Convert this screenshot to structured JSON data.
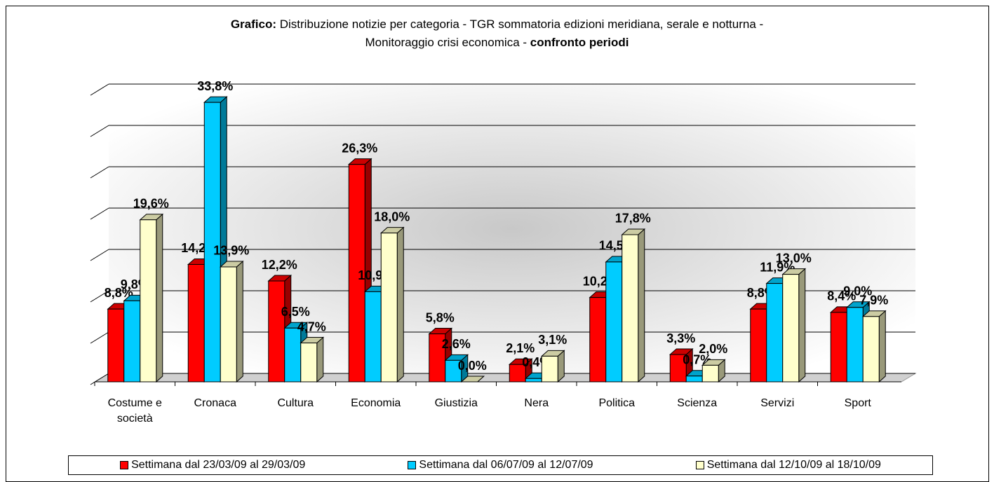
{
  "chart_data": {
    "type": "bar3d",
    "title": [
      "Grafico:",
      "Distribuzione notizie per categoria - TGR sommatoria edizioni meridiana, serale e notturna -",
      "Monitoraggio crisi economica -",
      "confronto periodi"
    ],
    "categories": [
      "Costume e società",
      "Cronaca",
      "Cultura",
      "Economia",
      "Giustizia",
      "Nera",
      "Politica",
      "Scienza",
      "Servizi",
      "Sport"
    ],
    "series": [
      {
        "name": "Settimana dal 23/03/09 al 29/03/09",
        "color": "#ff0000",
        "values": [
          8.8,
          14.2,
          12.2,
          26.3,
          5.8,
          2.1,
          10.2,
          3.3,
          8.8,
          8.4
        ],
        "value_labels": [
          "8,8%",
          "14,2%",
          "12,2%",
          "26,3%",
          "5,8%",
          "2,1%",
          "10,2%",
          "3,3%",
          "8,8%",
          "8,4%"
        ]
      },
      {
        "name": "Settimana dal 06/07/09 al 12/07/09",
        "color": "#00ccff",
        "values": [
          9.8,
          33.8,
          6.5,
          10.9,
          2.6,
          0.4,
          14.5,
          0.7,
          11.9,
          9.0
        ],
        "value_labels": [
          "9,8%",
          "33,8%",
          "6,5%",
          "10,9%",
          "2,6%",
          "0,4%",
          "14,5%",
          "0,7%",
          "11,9%",
          "9,0%"
        ]
      },
      {
        "name": "Settimana dal 12/10/09 al 18/10/09",
        "color": "#ffffcc",
        "values": [
          19.6,
          13.9,
          4.7,
          18.0,
          0.0,
          3.1,
          17.8,
          2.0,
          13.0,
          7.9
        ],
        "value_labels": [
          "19,6%",
          "13,9%",
          "4,7%",
          "18,0%",
          "0,0%",
          "3,1%",
          "17,8%",
          "2,0%",
          "13,0%",
          "7,9%"
        ]
      }
    ],
    "ylim": [
      0,
      35
    ],
    "yticks": [
      0,
      5,
      10,
      15,
      20,
      25,
      30,
      35
    ],
    "grid": true,
    "legend": "bottom"
  }
}
